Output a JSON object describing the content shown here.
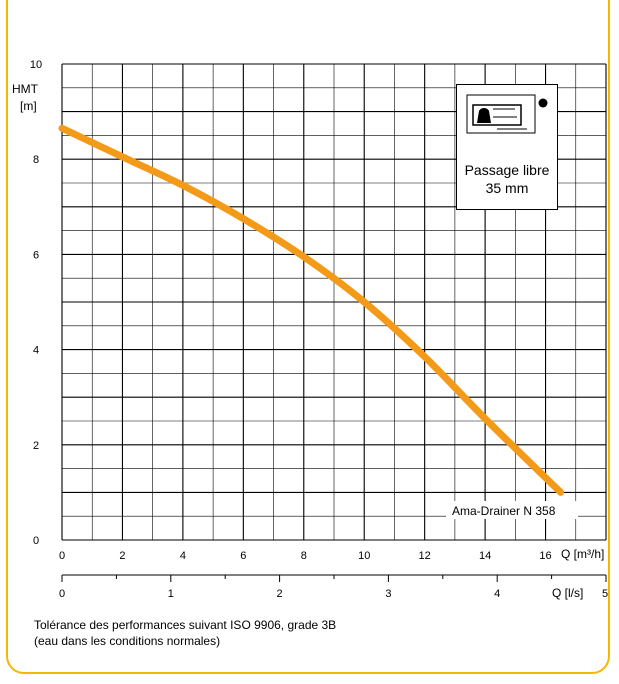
{
  "chart_data": {
    "type": "line",
    "ylabel_line1": "HMT",
    "ylabel_line2": "[m]",
    "ylim": [
      0,
      10
    ],
    "y_ticks": [
      0,
      2,
      4,
      6,
      8,
      10
    ],
    "xlim_m3h": [
      0,
      18
    ],
    "x_ticks_m3h": [
      0,
      2,
      4,
      6,
      8,
      10,
      12,
      14,
      16
    ],
    "xlabel_m3h": "Q [m³/h]",
    "x_ticks_ls": [
      0,
      1,
      2,
      3,
      4,
      5
    ],
    "xlabel_ls": "Q [l/s]",
    "grid": true,
    "series": [
      {
        "name": "Ama-Drainer   N 358",
        "color": "#f39b18",
        "x": [
          0,
          2,
          4,
          6,
          8,
          10,
          12,
          14,
          16.5
        ],
        "y": [
          8.65,
          8.05,
          7.45,
          6.75,
          5.95,
          5.0,
          3.85,
          2.55,
          1.0
        ]
      }
    ],
    "inset": {
      "line1": "Passage libre",
      "line2": "35 mm",
      "icon": "pump-drawing-icon"
    }
  },
  "footer": {
    "line1": "Tolérance des performances suivant ISO 9906, grade 3B",
    "line2": "(eau dans les conditions normales)"
  },
  "colors": {
    "frame": "#f5b800",
    "curve": "#f39b18"
  }
}
